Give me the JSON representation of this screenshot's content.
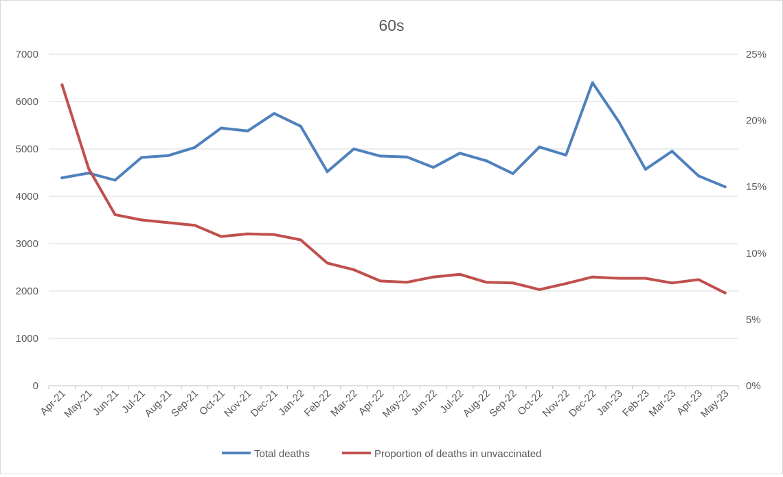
{
  "chart_data": {
    "type": "line",
    "title": "60s",
    "categories": [
      "Apr-21",
      "May-21",
      "Jun-21",
      "Jul-21",
      "Aug-21",
      "Sep-21",
      "Oct-21",
      "Nov-21",
      "Dec-21",
      "Jan-22",
      "Feb-22",
      "Mar-22",
      "Apr-22",
      "May-22",
      "Jun-22",
      "Jul-22",
      "Aug-22",
      "Sep-22",
      "Oct-22",
      "Nov-22",
      "Dec-22",
      "Jan-23",
      "Feb-23",
      "Mar-23",
      "Apr-23",
      "May-23"
    ],
    "y_left": {
      "min": 0,
      "max": 7000,
      "step": 1000,
      "ticks": [
        "0",
        "1000",
        "2000",
        "3000",
        "4000",
        "5000",
        "6000",
        "7000"
      ]
    },
    "y_right": {
      "min": 0,
      "max": 0.25,
      "step": 0.05,
      "ticks": [
        "0%",
        "5%",
        "10%",
        "15%",
        "20%",
        "25%"
      ]
    },
    "grid": "horizontal",
    "legend_position": "bottom",
    "series": [
      {
        "name": "Total deaths",
        "axis": "left",
        "color": "#4f81bd",
        "values": [
          4390,
          4490,
          4340,
          4820,
          4860,
          5030,
          5440,
          5380,
          5750,
          5480,
          4520,
          5000,
          4850,
          4830,
          4610,
          4910,
          4750,
          4480,
          5040,
          4870,
          6400,
          5570,
          4570,
          4950,
          4430,
          4200
        ]
      },
      {
        "name": "Proportion of deaths in unvaccinated",
        "axis": "right",
        "color": "#c0504d",
        "values": [
          0.227,
          0.164,
          0.129,
          0.125,
          0.123,
          0.121,
          0.1125,
          0.1145,
          0.114,
          0.11,
          0.0925,
          0.0875,
          0.079,
          0.078,
          0.082,
          0.084,
          0.078,
          0.0775,
          0.0725,
          0.077,
          0.082,
          0.081,
          0.081,
          0.0775,
          0.08,
          0.07
        ]
      }
    ]
  }
}
